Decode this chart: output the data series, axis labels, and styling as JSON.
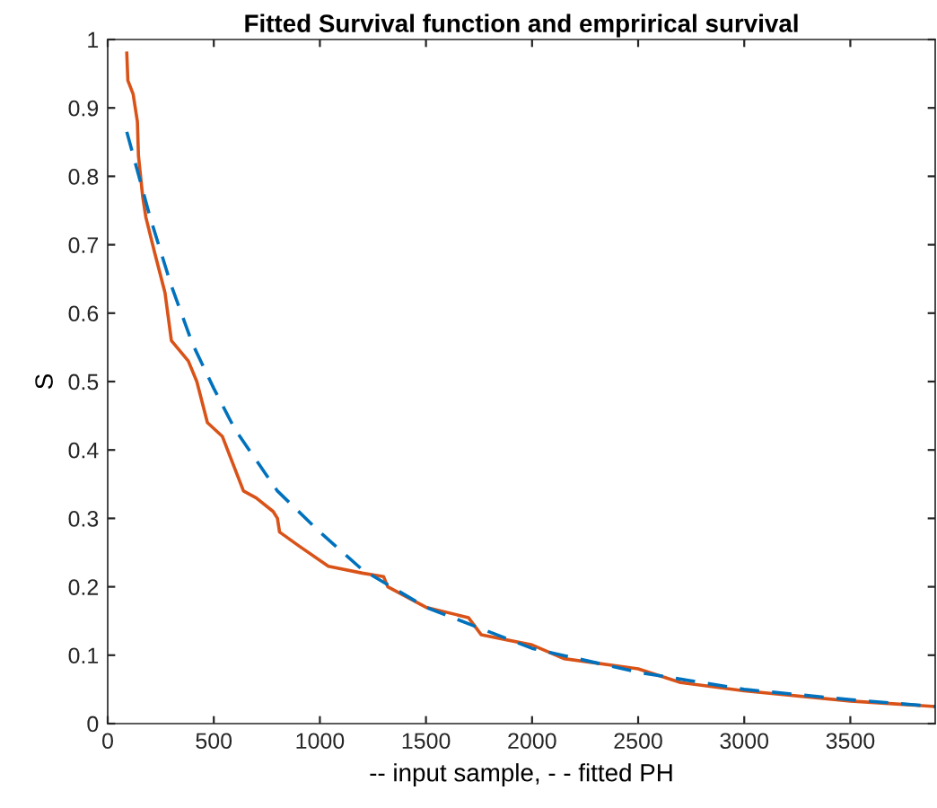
{
  "chart_data": {
    "type": "line",
    "title": "Fitted Survival function and emprirical survival",
    "xlabel": "-- input sample, - - fitted PH",
    "ylabel": "S",
    "xlim": [
      0,
      3900
    ],
    "xticks": [
      0,
      500,
      1000,
      1500,
      2000,
      2500,
      3000,
      3500
    ],
    "ylim": [
      0,
      1
    ],
    "yticks": [
      0,
      0.1,
      0.2,
      0.3,
      0.4,
      0.5,
      0.6,
      0.7,
      0.8,
      0.9,
      1
    ],
    "grid": false,
    "legend": false,
    "series": [
      {
        "color": "#d95319",
        "line_style": "solid",
        "x": [
          90,
          95,
          120,
          140,
          145,
          165,
          180,
          220,
          270,
          300,
          380,
          420,
          470,
          540,
          640,
          700,
          780,
          800,
          810,
          900,
          1040,
          1200,
          1300,
          1320,
          1500,
          1700,
          1760,
          2000,
          2150,
          2500,
          2700,
          3000,
          3500,
          3900
        ],
        "values": [
          0.98,
          0.94,
          0.92,
          0.88,
          0.83,
          0.77,
          0.74,
          0.69,
          0.63,
          0.56,
          0.53,
          0.5,
          0.44,
          0.42,
          0.34,
          0.33,
          0.31,
          0.3,
          0.28,
          0.26,
          0.23,
          0.22,
          0.215,
          0.2,
          0.17,
          0.155,
          0.13,
          0.115,
          0.095,
          0.08,
          0.06,
          0.048,
          0.033,
          0.025
        ]
      },
      {
        "color": "#0072bd",
        "line_style": "dashed",
        "x": [
          90,
          200,
          300,
          400,
          500,
          600,
          800,
          1000,
          1200,
          1500,
          2000,
          2500,
          3000,
          3500,
          3900
        ],
        "values": [
          0.865,
          0.74,
          0.64,
          0.555,
          0.49,
          0.43,
          0.34,
          0.28,
          0.225,
          0.17,
          0.11,
          0.075,
          0.05,
          0.035,
          0.025
        ]
      }
    ]
  }
}
